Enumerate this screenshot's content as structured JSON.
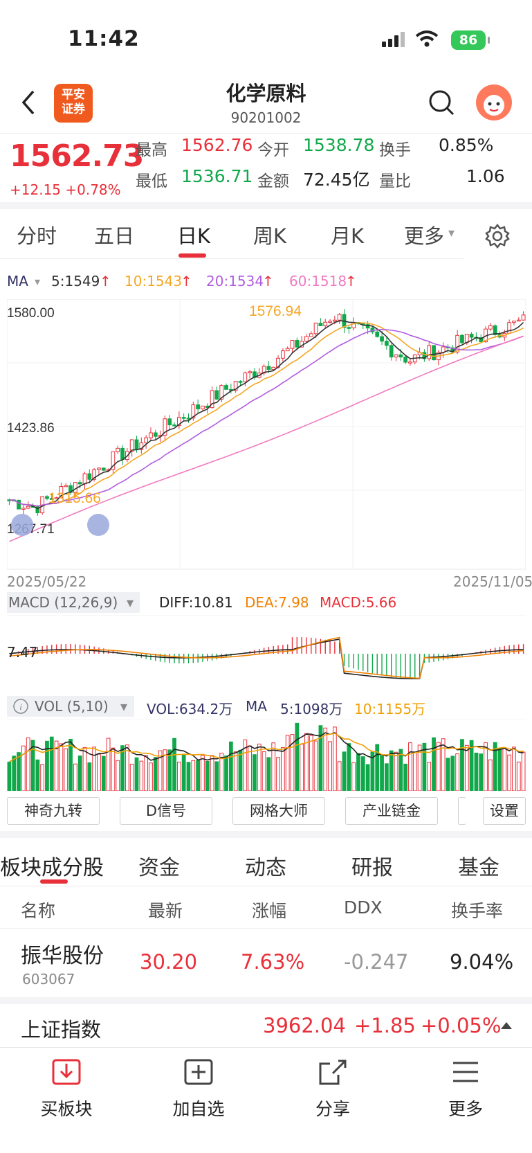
{
  "status_bar": {
    "time": "11:42",
    "battery": "86"
  },
  "header": {
    "title": "化学原料",
    "code": "90201002",
    "logo_line1": "平安",
    "logo_line2": "证券"
  },
  "quote": {
    "price": "1562.73",
    "change": "+12.15 +0.78%",
    "fields": [
      {
        "label": "最高",
        "value": "1562.76",
        "color": "red"
      },
      {
        "label": "今开",
        "value": "1538.78",
        "color": "green"
      },
      {
        "label": "换手",
        "value": "0.85%",
        "color": "dark"
      },
      {
        "label": "最低",
        "value": "1536.71",
        "color": "green"
      },
      {
        "label": "金额",
        "value": "72.45亿",
        "color": "dark"
      },
      {
        "label": "量比",
        "value": "1.06",
        "color": "dark"
      }
    ]
  },
  "period_tabs": [
    "分时",
    "五日",
    "日K",
    "周K",
    "月K",
    "更多"
  ],
  "active_period": "日K",
  "ma_legend": {
    "name": "MA",
    "items": [
      {
        "text": "5:1549",
        "color": "#333333"
      },
      {
        "text": "10:1543",
        "color": "#f5a623"
      },
      {
        "text": "20:1534",
        "color": "#b05ce0"
      },
      {
        "text": "60:1518",
        "color": "#f07ac0"
      }
    ]
  },
  "kline": {
    "y_labels": [
      "1580.00",
      "1423.86",
      "1267.71"
    ],
    "high_marker": "1576.94",
    "low_marker": "1315.66",
    "date_start": "2025/05/22",
    "date_end": "2025/11/05"
  },
  "macd": {
    "name": "MACD (12,26,9)",
    "diff": "DIFF:10.81",
    "dea": "DEA:7.98",
    "macd": "MACD:5.66",
    "axis_label": "7.47"
  },
  "vol": {
    "name": "VOL (5,10)",
    "vol": "VOL:634.2万",
    "ma": "MA",
    "ma5": "5:1098万",
    "ma10": "10:1155万"
  },
  "tools": [
    "神奇九转",
    "D信号",
    "网格大师",
    "产业链金",
    "设置"
  ],
  "section_tabs": [
    "板块成分股",
    "资金",
    "动态",
    "研报",
    "基金"
  ],
  "table": {
    "headers": [
      "名称",
      "最新",
      "涨幅",
      "DDX",
      "换手率"
    ],
    "rows": [
      {
        "name": "振华股份",
        "code": "603067",
        "price": "30.20",
        "pct": "7.63%",
        "ddx": "-0.247",
        "turnover": "9.04%"
      }
    ]
  },
  "index_bar": {
    "name": "上证指数",
    "value": "3962.04",
    "change": "+1.85",
    "pct": "+0.05%"
  },
  "bottom_nav": [
    "买板块",
    "加自选",
    "分享",
    "更多"
  ],
  "colors": {
    "up": "#e8303a",
    "down": "#10a84a",
    "accent": "#e8303a"
  }
}
